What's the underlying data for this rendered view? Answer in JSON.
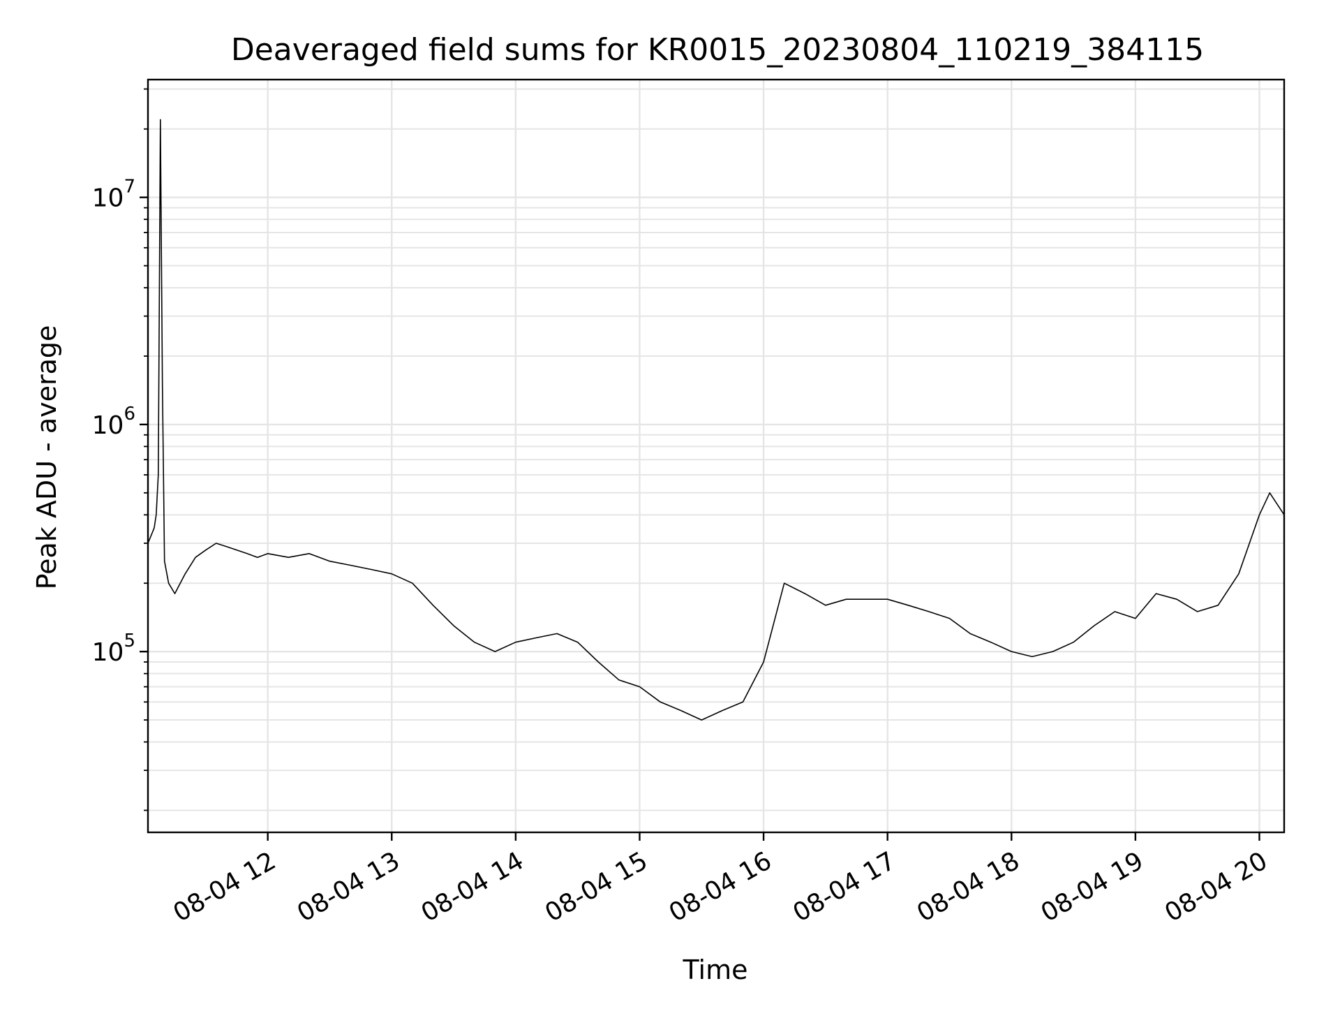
{
  "chart_data": {
    "type": "line",
    "title": "Deaveraged field sums for KR0015_20230804_110219_384115",
    "xlabel": "Time",
    "ylabel": "Peak ADU - average",
    "y_scale": "log",
    "ylim": [
      16000,
      33000000
    ],
    "xlim": [
      "08-04 11:02",
      "08-04 20:12"
    ],
    "grid": true,
    "line_color": "#000000",
    "grid_color": "#e5e5e5",
    "x_ticks": [
      {
        "label": "08-04 12",
        "hour": 12
      },
      {
        "label": "08-04 13",
        "hour": 13
      },
      {
        "label": "08-04 14",
        "hour": 14
      },
      {
        "label": "08-04 15",
        "hour": 15
      },
      {
        "label": "08-04 16",
        "hour": 16
      },
      {
        "label": "08-04 17",
        "hour": 17
      },
      {
        "label": "08-04 18",
        "hour": 18
      },
      {
        "label": "08-04 19",
        "hour": 19
      },
      {
        "label": "08-04 20",
        "hour": 20
      }
    ],
    "y_ticks": [
      {
        "base": "10",
        "exp": "5",
        "value": 100000
      },
      {
        "base": "10",
        "exp": "6",
        "value": 1000000
      },
      {
        "base": "10",
        "exp": "7",
        "value": 10000000
      }
    ],
    "series": [
      {
        "x": [
          "11:02",
          "11:05",
          "11:06",
          "11:07",
          "11:08",
          "11:09",
          "11:10",
          "11:12",
          "11:15",
          "11:20",
          "11:25",
          "11:30",
          "11:35",
          "11:40",
          "11:45",
          "11:50",
          "11:55",
          "12:00",
          "12:10",
          "12:20",
          "12:30",
          "12:40",
          "12:50",
          "13:00",
          "13:10",
          "13:20",
          "13:30",
          "13:40",
          "13:50",
          "14:00",
          "14:10",
          "14:20",
          "14:30",
          "14:40",
          "14:50",
          "15:00",
          "15:10",
          "15:20",
          "15:30",
          "15:40",
          "15:50",
          "16:00",
          "16:10",
          "16:20",
          "16:30",
          "16:40",
          "16:50",
          "17:00",
          "17:10",
          "17:20",
          "17:30",
          "17:40",
          "17:50",
          "18:00",
          "18:10",
          "18:20",
          "18:30",
          "18:40",
          "18:50",
          "19:00",
          "19:10",
          "19:20",
          "19:30",
          "19:40",
          "19:50",
          "20:00",
          "20:05",
          "20:12"
        ],
        "y": [
          300000,
          350000,
          400000,
          600000,
          22000000,
          1500000,
          250000,
          200000,
          180000,
          220000,
          260000,
          280000,
          300000,
          290000,
          280000,
          270000,
          260000,
          270000,
          260000,
          270000,
          250000,
          240000,
          230000,
          220000,
          200000,
          160000,
          130000,
          110000,
          100000,
          110000,
          115000,
          120000,
          110000,
          90000,
          75000,
          70000,
          60000,
          55000,
          50000,
          55000,
          60000,
          90000,
          200000,
          180000,
          160000,
          170000,
          170000,
          170000,
          160000,
          150000,
          140000,
          120000,
          110000,
          100000,
          95000,
          100000,
          110000,
          130000,
          150000,
          140000,
          180000,
          170000,
          150000,
          160000,
          220000,
          400000,
          500000,
          400000
        ]
      }
    ]
  }
}
